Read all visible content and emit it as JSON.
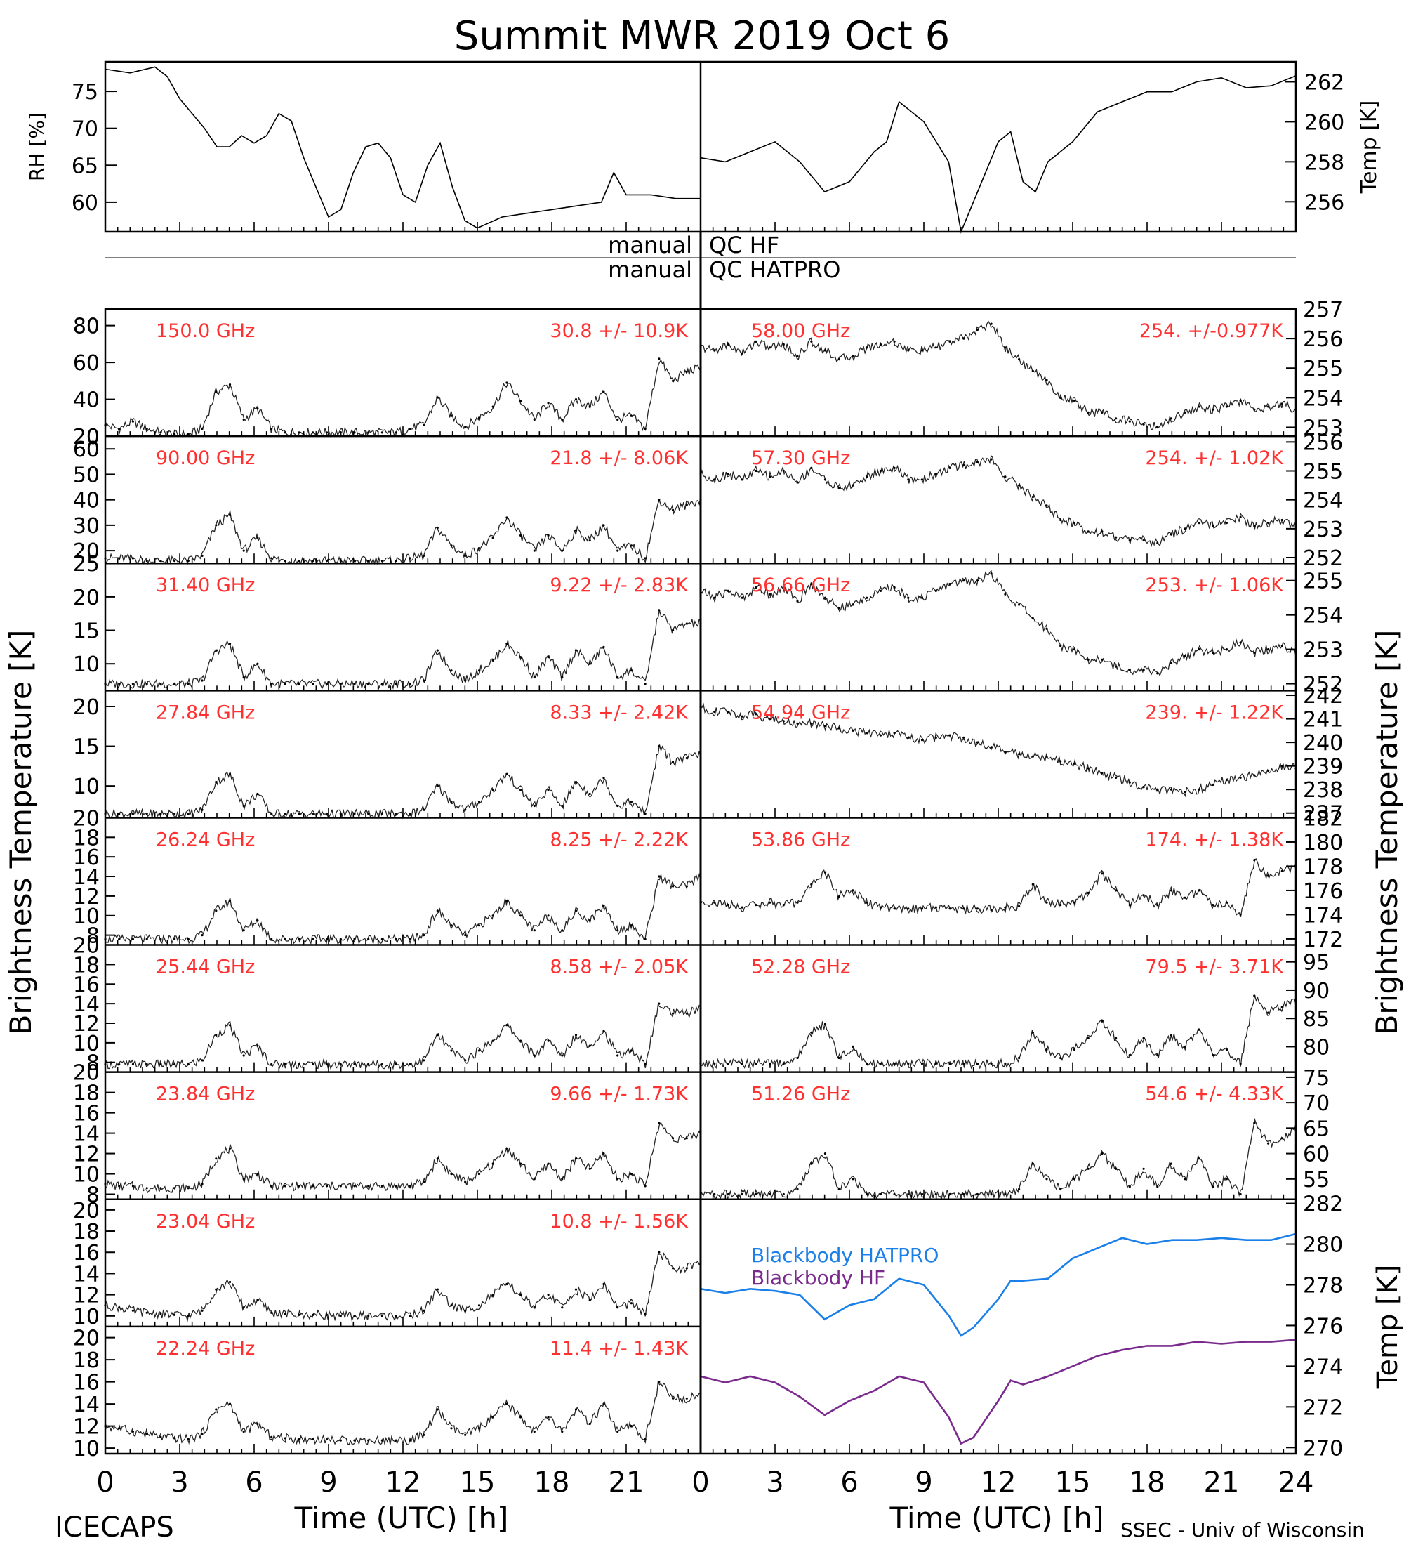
{
  "title": "Summit MWR 2019 Oct  6",
  "footer_left": "ICECAPS",
  "footer_right": "SSEC - Univ of Wisconsin",
  "x_axis_label": "Time (UTC) [h]",
  "left_y_label": "Brightness Temperature [K]",
  "right_y_label": "Brightness Temperature [K]",
  "qc_rows": [
    {
      "left": "manual",
      "right": "QC HF"
    },
    {
      "left": "manual",
      "right": "QC HATPRO"
    }
  ],
  "colors": {
    "annotation": "#ff3030",
    "blackbody_hatpro": "#1a7fe8",
    "blackbody_hf": "#7a2a8c",
    "trace": "#000000"
  },
  "chart_data": [
    {
      "type": "line",
      "panel": "rh",
      "ylabel": "RH [%]",
      "xlim": [
        0,
        24
      ],
      "ylim": [
        56,
        79
      ],
      "yticks": [
        60,
        65,
        70,
        75
      ],
      "x": [
        0,
        1,
        2,
        2.5,
        3,
        4,
        4.5,
        5,
        5.5,
        6,
        6.5,
        7,
        7.5,
        8,
        8.5,
        9,
        9.5,
        10,
        10.5,
        11,
        11.5,
        12,
        12.5,
        13,
        13.5,
        14,
        14.5,
        15,
        16,
        17,
        18,
        19,
        20,
        20.5,
        21,
        22,
        23,
        24
      ],
      "values": [
        78,
        77.5,
        78.3,
        77,
        74,
        70,
        67.5,
        67.5,
        69,
        68,
        69,
        72,
        71,
        66,
        62,
        58,
        59,
        64,
        67.5,
        68,
        66,
        61,
        60,
        65,
        68,
        62,
        57.5,
        56.5,
        58,
        58.5,
        59,
        59.5,
        60,
        64,
        61,
        61,
        60.5,
        60.5
      ]
    },
    {
      "type": "line",
      "panel": "air_temp",
      "ylabel": "Temp [K]",
      "xlim": [
        0,
        24
      ],
      "ylim": [
        254.5,
        263
      ],
      "yticks": [
        256,
        258,
        260,
        262
      ],
      "x": [
        0,
        1,
        2,
        3,
        4,
        5,
        6,
        7,
        7.5,
        8,
        9,
        10,
        10.5,
        11,
        12,
        12.5,
        13,
        13.5,
        14,
        15,
        16,
        17,
        18,
        19,
        20,
        21,
        22,
        23,
        24
      ],
      "values": [
        258.2,
        258,
        258.5,
        259,
        258,
        256.5,
        257,
        258.5,
        259,
        261,
        260,
        258,
        254.5,
        256,
        259,
        259.5,
        257,
        256.5,
        258,
        259,
        260.5,
        261,
        261.5,
        261.5,
        262,
        262.2,
        261.7,
        261.8,
        262.3
      ]
    },
    {
      "type": "line",
      "side": "left",
      "freq_label": "150.0 GHz",
      "stats": "30.8 +/-  10.9K",
      "ylim": [
        20,
        89
      ],
      "yticks": [
        20,
        40,
        60,
        80
      ],
      "values": [
        26,
        24,
        28,
        24,
        22,
        21,
        21,
        24,
        44,
        48,
        29,
        35,
        24,
        22,
        22,
        22,
        22,
        22,
        22,
        22,
        22,
        22,
        24,
        26,
        41,
        31,
        25,
        30,
        36,
        49,
        39,
        29,
        38,
        29,
        40,
        36,
        44,
        29,
        31,
        24,
        62,
        50,
        55,
        57
      ]
    },
    {
      "type": "line",
      "side": "left",
      "freq_label": "90.00 GHz",
      "stats": "21.8 +/-  8.06K",
      "ylim": [
        15,
        65
      ],
      "yticks": [
        20,
        30,
        40,
        50,
        60
      ],
      "values": [
        17,
        17,
        17,
        16,
        16,
        16,
        16,
        18,
        30,
        34,
        20,
        25,
        17,
        16,
        16,
        16,
        16,
        16,
        16,
        16,
        16,
        16,
        17,
        18,
        29,
        22,
        18,
        21,
        25,
        33,
        26,
        20,
        26,
        20,
        28,
        24,
        30,
        20,
        22,
        17,
        40,
        36,
        38,
        40
      ]
    },
    {
      "type": "line",
      "side": "left",
      "freq_label": "31.40 GHz",
      "stats": "9.22 +/- 2.83K",
      "ylim": [
        6,
        25
      ],
      "yticks": [
        10,
        15,
        20,
        25
      ],
      "values": [
        7,
        7,
        7,
        7,
        7,
        7,
        7,
        7.5,
        12,
        13,
        8,
        10,
        7,
        7,
        7,
        7,
        7,
        7,
        7,
        7,
        7,
        7,
        7,
        7.5,
        12,
        9,
        7.5,
        9,
        10.5,
        13,
        11,
        8,
        11,
        8,
        12,
        10,
        12.5,
        8,
        9,
        7,
        18,
        15,
        16,
        16
      ]
    },
    {
      "type": "line",
      "side": "left",
      "freq_label": "27.84 GHz",
      "stats": "8.33 +/- 2.42K",
      "ylim": [
        6,
        22
      ],
      "yticks": [
        10,
        15,
        20
      ],
      "values": [
        6.5,
        6.5,
        6.5,
        6.5,
        6.5,
        6.5,
        6.5,
        7,
        10.5,
        11.5,
        7.5,
        9,
        6.5,
        6.5,
        6.5,
        6.5,
        6.5,
        6.5,
        6.5,
        6.5,
        6.5,
        6.5,
        6.5,
        7,
        10,
        8,
        7,
        8,
        9.5,
        11.5,
        9.5,
        7.5,
        9.5,
        7.5,
        10.5,
        9,
        11,
        7.5,
        8,
        6.5,
        15,
        13,
        13.5,
        14
      ]
    },
    {
      "type": "line",
      "side": "left",
      "freq_label": "26.24 GHz",
      "stats": "8.25 +/- 2.22K",
      "ylim": [
        7,
        20
      ],
      "yticks": [
        8,
        10,
        12,
        14,
        16,
        18,
        20
      ],
      "values": [
        7.6,
        7.6,
        7.6,
        7.6,
        7.6,
        7.6,
        7.6,
        8,
        10.5,
        11.5,
        8.5,
        9.5,
        7.6,
        7.6,
        7.6,
        7.6,
        7.6,
        7.6,
        7.6,
        7.6,
        7.6,
        7.6,
        7.6,
        8,
        10.5,
        9,
        8,
        9,
        10,
        11.5,
        10,
        8.5,
        10,
        8.5,
        10.5,
        9.5,
        11,
        8.5,
        9,
        7.6,
        14,
        13,
        13,
        14
      ]
    },
    {
      "type": "line",
      "side": "left",
      "freq_label": "25.44 GHz",
      "stats": "8.58 +/- 2.05K",
      "ylim": [
        7,
        20
      ],
      "yticks": [
        8,
        10,
        12,
        14,
        16,
        18,
        20
      ],
      "values": [
        7.8,
        7.8,
        7.8,
        7.8,
        7.8,
        7.8,
        7.8,
        8.2,
        10.8,
        11.8,
        8.7,
        9.7,
        7.8,
        7.8,
        7.8,
        7.8,
        7.8,
        7.8,
        7.8,
        7.8,
        7.8,
        7.8,
        7.8,
        8.2,
        10.8,
        9.2,
        8.2,
        9.2,
        10.2,
        11.8,
        10.2,
        8.7,
        10.2,
        8.7,
        10.8,
        9.7,
        11.2,
        8.7,
        9.2,
        7.8,
        14,
        13,
        13,
        13.5
      ]
    },
    {
      "type": "line",
      "side": "left",
      "freq_label": "23.84 GHz",
      "stats": "9.66 +/- 1.73K",
      "ylim": [
        7.5,
        20
      ],
      "yticks": [
        8,
        10,
        12,
        14,
        16,
        18,
        20
      ],
      "values": [
        9,
        8.8,
        8.8,
        8.6,
        8.6,
        8.6,
        8.6,
        9,
        11.5,
        12.5,
        9.5,
        10,
        8.8,
        8.8,
        8.8,
        8.8,
        8.8,
        8.8,
        8.8,
        8.8,
        8.8,
        8.8,
        8.8,
        9.2,
        11.5,
        10,
        9.2,
        10,
        11,
        12.5,
        11,
        9.5,
        11,
        9.5,
        11.5,
        10.5,
        12,
        9.5,
        10,
        8.8,
        15,
        13.5,
        13.5,
        14
      ]
    },
    {
      "type": "line",
      "side": "left",
      "freq_label": "23.04 GHz",
      "stats": "10.8 +/- 1.56K",
      "ylim": [
        9,
        21
      ],
      "yticks": [
        10,
        12,
        14,
        16,
        18,
        20
      ],
      "values": [
        11,
        10.8,
        10.5,
        10.3,
        10.2,
        10.1,
        10,
        10.5,
        12.5,
        13.2,
        10.8,
        11.5,
        10.3,
        10.2,
        10.1,
        10.1,
        10.1,
        10,
        10,
        10,
        10,
        10,
        10,
        10.5,
        12.5,
        11,
        10.5,
        11,
        12,
        13,
        12,
        10.8,
        12,
        10.8,
        12.5,
        11.5,
        13,
        10.8,
        11.2,
        10.2,
        16,
        14.5,
        14.5,
        15
      ]
    },
    {
      "type": "line",
      "side": "left",
      "freq_label": "22.24 GHz",
      "stats": "11.4 +/- 1.43K",
      "ylim": [
        9.5,
        21
      ],
      "yticks": [
        10,
        12,
        14,
        16,
        18,
        20
      ],
      "values": [
        12,
        11.8,
        11.5,
        11.3,
        11,
        10.9,
        10.8,
        11.3,
        13.5,
        14,
        11.5,
        12.2,
        11,
        10.9,
        10.8,
        10.8,
        10.8,
        10.7,
        10.7,
        10.7,
        10.7,
        10.7,
        10.7,
        11.2,
        13.5,
        11.8,
        11.2,
        11.8,
        12.8,
        14,
        12.8,
        11.5,
        12.8,
        11.5,
        13.5,
        12.2,
        14,
        11.5,
        12,
        10.8,
        16,
        14.5,
        14.5,
        15
      ]
    },
    {
      "type": "line",
      "side": "right",
      "freq_label": "58.00 GHz",
      "stats": "254. +/-0.977K",
      "ylim": [
        252.7,
        257
      ],
      "yticks": [
        253,
        254,
        255,
        256,
        257
      ],
      "values": [
        255.7,
        255.6,
        255.8,
        255.5,
        255.9,
        255.7,
        255.8,
        255.4,
        255.9,
        255.6,
        255.3,
        255.4,
        255.7,
        255.8,
        255.9,
        255.6,
        255.6,
        255.7,
        255.9,
        256,
        256.3,
        256.5,
        255.7,
        255.3,
        254.9,
        254.6,
        254,
        253.9,
        253.5,
        253.5,
        253.3,
        253.2,
        253.1,
        253,
        253.3,
        253.5,
        253.7,
        253.6,
        253.7,
        253.9,
        253.6,
        253.7,
        253.8,
        253.6
      ]
    },
    {
      "type": "line",
      "side": "right",
      "freq_label": "57.30 GHz",
      "stats": "254. +/- 1.02K",
      "ylim": [
        251.8,
        256.2
      ],
      "yticks": [
        252,
        253,
        254,
        255,
        256
      ],
      "values": [
        254.9,
        254.7,
        254.9,
        254.7,
        255,
        254.8,
        255,
        254.6,
        255.1,
        254.7,
        254.4,
        254.5,
        254.8,
        255,
        255.1,
        254.7,
        254.7,
        254.9,
        255.1,
        255.2,
        255.3,
        255.4,
        254.8,
        254.5,
        254.1,
        253.8,
        253.3,
        253.2,
        252.9,
        252.9,
        252.7,
        252.6,
        252.6,
        252.5,
        252.8,
        253,
        253.2,
        253.1,
        253.2,
        253.4,
        253.1,
        253.2,
        253.3,
        253.1
      ]
    },
    {
      "type": "line",
      "side": "right",
      "freq_label": "56.66 GHz",
      "stats": "253. +/- 1.06K",
      "ylim": [
        251.8,
        255.5
      ],
      "yticks": [
        252,
        253,
        254,
        255
      ],
      "values": [
        254.7,
        254.5,
        254.7,
        254.5,
        254.8,
        254.6,
        254.8,
        254.4,
        254.9,
        254.5,
        254.2,
        254.3,
        254.5,
        254.7,
        254.8,
        254.5,
        254.5,
        254.7,
        254.9,
        255,
        255,
        255.2,
        254.6,
        254.3,
        253.9,
        253.6,
        253.1,
        253,
        252.7,
        252.7,
        252.5,
        252.4,
        252.4,
        252.3,
        252.6,
        252.8,
        253,
        252.9,
        253,
        253.2,
        252.9,
        253,
        253.1,
        252.9
      ]
    },
    {
      "type": "line",
      "side": "right",
      "freq_label": "54.94 GHz",
      "stats": "239. +/- 1.22K",
      "ylim": [
        236.8,
        242.2
      ],
      "yticks": [
        237,
        238,
        239,
        240,
        241,
        242
      ],
      "values": [
        241.5,
        241.3,
        241.3,
        241.1,
        241.2,
        241,
        240.9,
        240.8,
        240.8,
        240.7,
        240.6,
        240.5,
        240.4,
        240.3,
        240.4,
        240.2,
        240.1,
        240.2,
        240.3,
        240.2,
        240,
        239.8,
        239.6,
        239.5,
        239.4,
        239.4,
        239.2,
        239.1,
        238.9,
        238.7,
        238.5,
        238.3,
        238.1,
        238,
        238,
        237.9,
        238,
        238.2,
        238.4,
        238.5,
        238.6,
        238.8,
        239,
        238.9
      ]
    },
    {
      "type": "line",
      "side": "right",
      "freq_label": "53.86 GHz",
      "stats": "174. +/- 1.38K",
      "ylim": [
        171.5,
        182
      ],
      "yticks": [
        172,
        174,
        176,
        178,
        180,
        182
      ],
      "values": [
        175,
        175,
        174.8,
        174.6,
        174.8,
        175,
        174.8,
        175,
        176.5,
        177.5,
        175.5,
        176,
        175,
        174.6,
        174.5,
        174.5,
        174.5,
        174.6,
        174.5,
        174.5,
        174.5,
        174.4,
        174.6,
        174.7,
        176.5,
        175,
        174.8,
        175,
        175.8,
        177.4,
        176,
        174.8,
        175.6,
        174.8,
        176,
        175.4,
        176,
        174.8,
        175,
        174,
        178.5,
        177.2,
        177.6,
        178
      ]
    },
    {
      "type": "line",
      "side": "right",
      "freq_label": "52.28 GHz",
      "stats": "79.5 +/- 3.71K",
      "ylim": [
        75.5,
        98
      ],
      "yticks": [
        80,
        85,
        90,
        95
      ],
      "values": [
        77,
        77,
        77,
        77,
        77,
        77,
        77,
        78,
        82.5,
        84,
        78,
        80,
        77,
        77,
        77,
        77,
        77,
        77,
        77,
        77,
        77,
        77,
        77,
        78,
        82.5,
        79.5,
        78,
        79.5,
        81.5,
        84.5,
        81.5,
        78.5,
        81.5,
        78.5,
        82,
        80,
        83,
        78.5,
        79.5,
        77,
        89,
        86,
        87,
        88
      ]
    },
    {
      "type": "line",
      "side": "right",
      "freq_label": "51.26 GHz",
      "stats": "54.6 +/- 4.33K",
      "ylim": [
        51,
        76
      ],
      "yticks": [
        55,
        60,
        65,
        70,
        75
      ],
      "values": [
        52,
        52,
        52,
        52,
        52,
        52,
        52,
        53,
        58,
        60,
        53,
        55,
        52,
        52,
        52,
        52,
        52,
        52,
        52,
        52,
        52,
        52,
        52,
        53,
        58,
        55,
        53,
        55,
        57,
        60,
        57,
        53.5,
        57,
        53.5,
        58,
        55,
        59,
        53.5,
        55,
        52,
        66,
        62,
        63,
        65
      ]
    },
    {
      "type": "line",
      "panel": "blackbody",
      "ylabel": "Temp [K]",
      "ylim": [
        269.7,
        282.2
      ],
      "yticks": [
        270,
        272,
        274,
        276,
        278,
        280,
        282
      ],
      "x": [
        0,
        1,
        2,
        3,
        4,
        5,
        6,
        7,
        8,
        9,
        10,
        10.5,
        11,
        12,
        12.5,
        13,
        14,
        15,
        16,
        17,
        18,
        19,
        20,
        21,
        22,
        23,
        24
      ],
      "series": [
        {
          "name": "Blackbody HATPRO",
          "values": [
            277.8,
            277.6,
            277.8,
            277.7,
            277.5,
            276.3,
            277,
            277.3,
            278.3,
            278,
            276.5,
            275.5,
            275.9,
            277.3,
            278.2,
            278.2,
            278.3,
            279.3,
            279.8,
            280.3,
            280,
            280.2,
            280.2,
            280.3,
            280.2,
            280.2,
            280.5
          ]
        },
        {
          "name": "Blackbody HF",
          "values": [
            273.5,
            273.2,
            273.5,
            273.2,
            272.5,
            271.6,
            272.3,
            272.8,
            273.5,
            273.2,
            271.5,
            270.2,
            270.5,
            272.3,
            273.3,
            273.1,
            273.5,
            274,
            274.5,
            274.8,
            275,
            275,
            275.2,
            275.1,
            275.2,
            275.2,
            275.3
          ]
        }
      ]
    }
  ]
}
